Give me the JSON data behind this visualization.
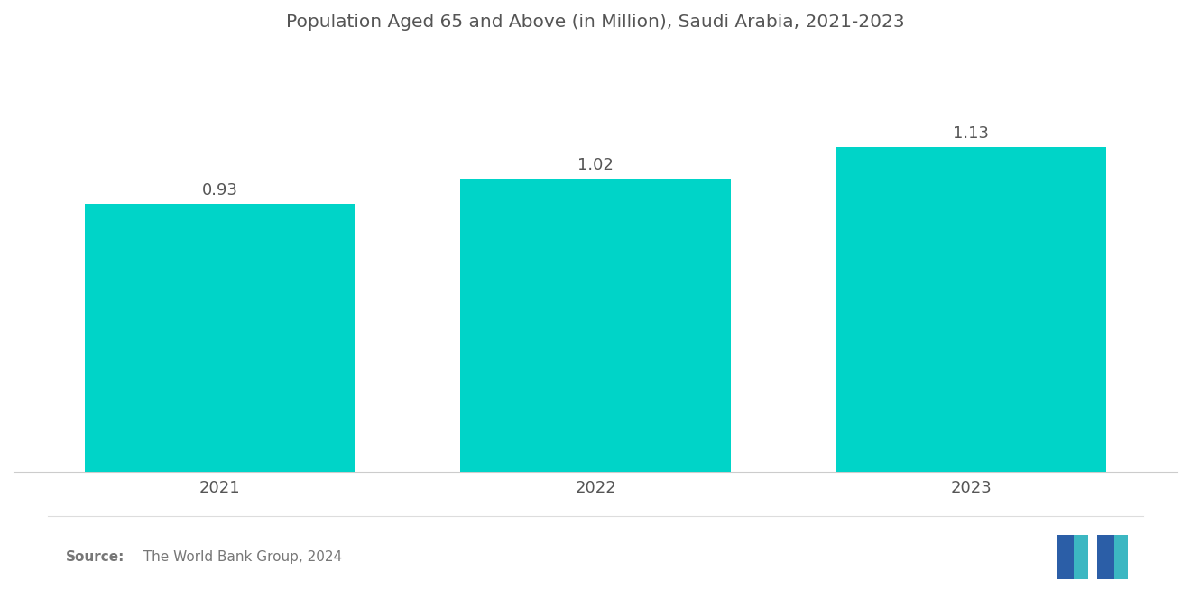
{
  "title": "Population Aged 65 and Above (in Million), Saudi Arabia, 2021-2023",
  "categories": [
    "2021",
    "2022",
    "2023"
  ],
  "values": [
    0.93,
    1.02,
    1.13
  ],
  "bar_color": "#00D4C8",
  "background_color": "#ffffff",
  "title_fontsize": 14.5,
  "tick_fontsize": 13,
  "value_fontsize": 13,
  "source_bold": "Source:",
  "source_text": "  The World Bank Group, 2024",
  "ylim": [
    0,
    1.45
  ],
  "bar_width": 0.72,
  "xlim": [
    -0.55,
    2.55
  ]
}
